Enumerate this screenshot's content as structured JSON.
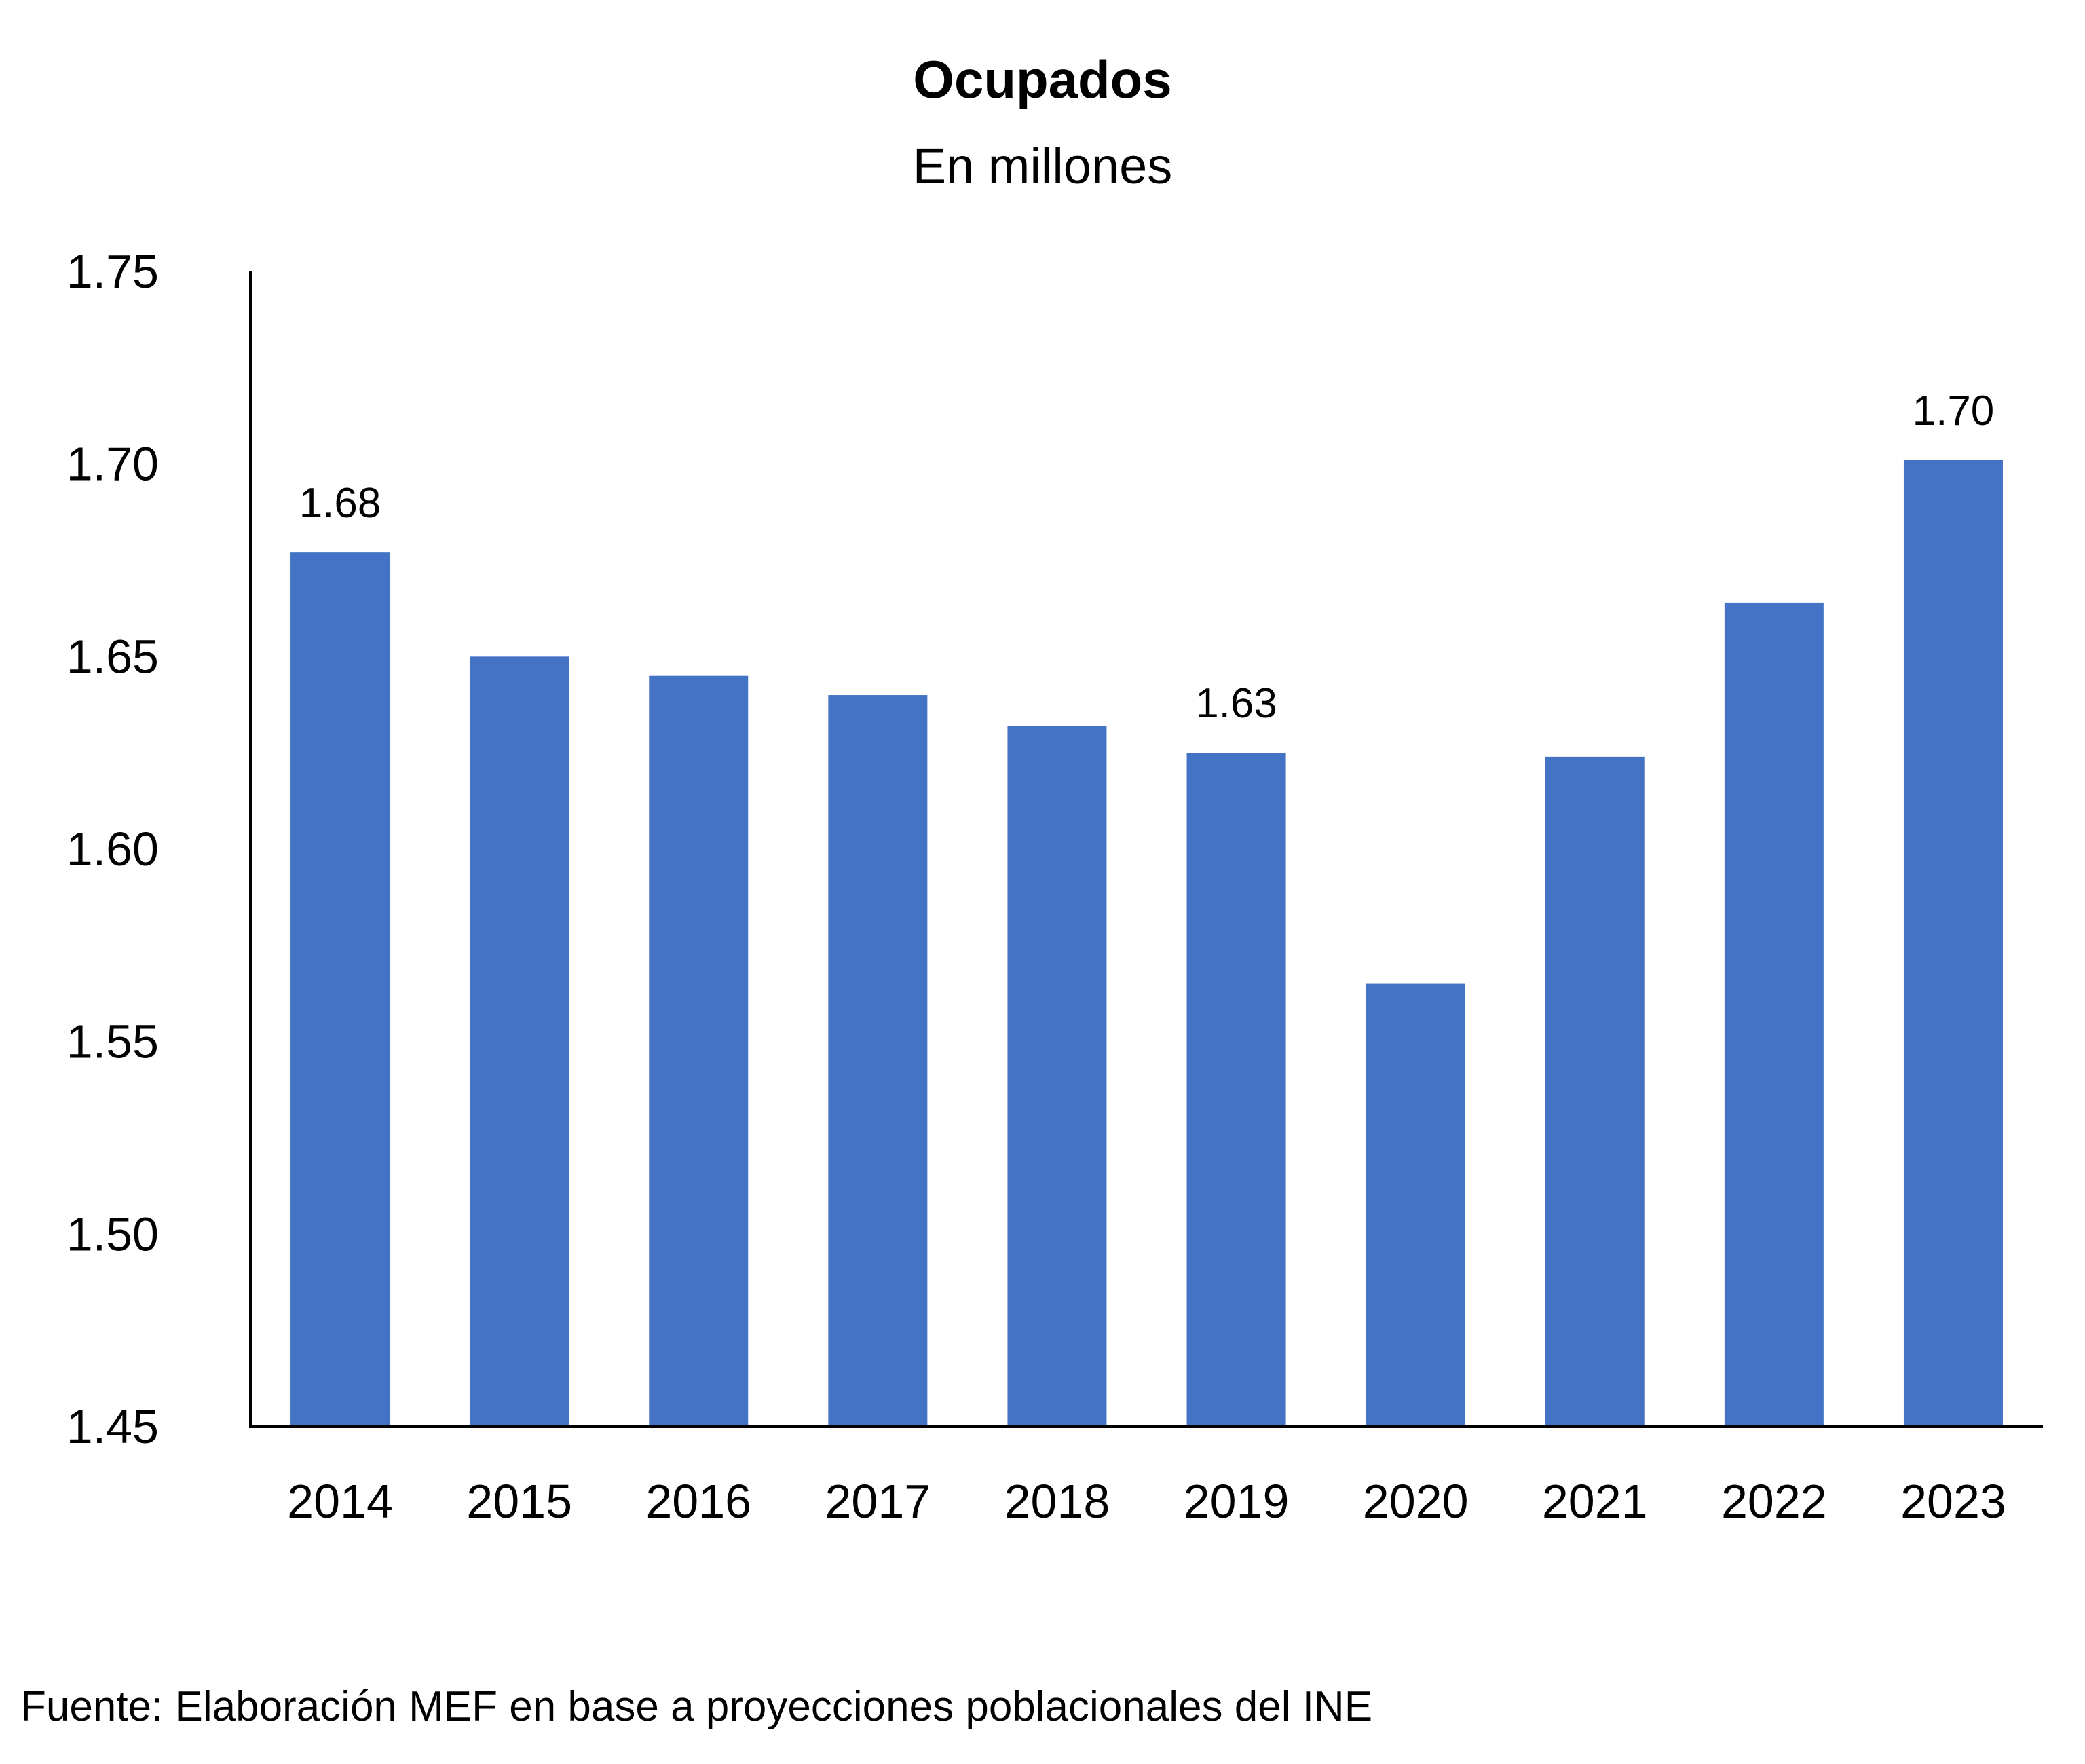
{
  "chart_data": {
    "type": "bar",
    "title": "Ocupados",
    "subtitle": "En millones",
    "xlabel": "",
    "ylabel": "",
    "categories": [
      "2014",
      "2015",
      "2016",
      "2017",
      "2018",
      "2019",
      "2020",
      "2021",
      "2022",
      "2023"
    ],
    "series": [
      {
        "values": [
          1.677,
          1.65,
          1.645,
          1.64,
          1.632,
          1.625,
          1.565,
          1.624,
          1.664,
          1.701
        ],
        "color": "#4472c4"
      }
    ],
    "data_labels": {
      "0": "1.68",
      "5": "1.63",
      "9": "1.70"
    },
    "ylim": [
      1.45,
      1.75
    ],
    "y_ticks": [
      "1.45",
      "1.50",
      "1.55",
      "1.60",
      "1.65",
      "1.70",
      "1.75"
    ],
    "grid": false,
    "legend": "none",
    "axis_color": "#000000"
  },
  "source": "Fuente: Elaboración MEF en base a proyecciones poblacionales del INE"
}
